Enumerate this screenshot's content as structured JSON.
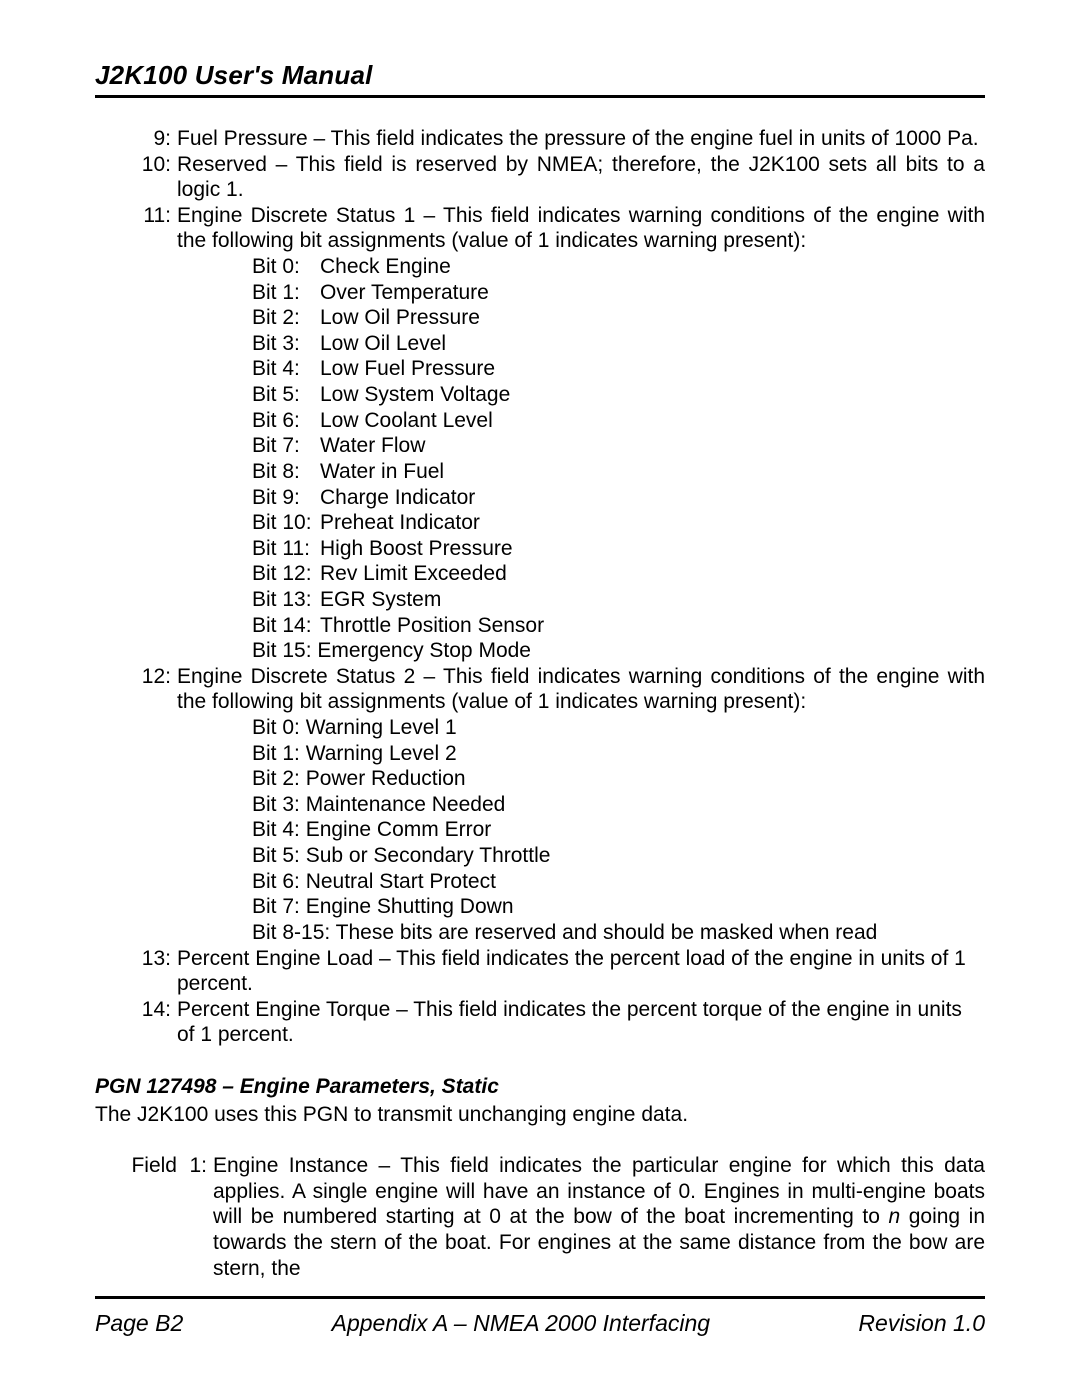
{
  "header": {
    "title": "J2K100 User's Manual"
  },
  "footer": {
    "page": "Page B2",
    "center": "Appendix A – NMEA 2000 Interfacing",
    "rev": "Revision 1.0"
  },
  "fields": {
    "f9": {
      "num": "9:",
      "text": "Fuel Pressure – This field indicates the pressure of the engine fuel in units of 1000 Pa."
    },
    "f10": {
      "num": "10:",
      "text": "Reserved – This field is reserved by NMEA; therefore, the J2K100 sets all bits to a logic 1."
    },
    "f11": {
      "num": "11:",
      "text": "Engine Discrete Status 1 – This field indicates warning conditions of the engine with the following bit assignments (value of 1 indicates warning present):"
    },
    "f12": {
      "num": "12:",
      "text": "Engine Discrete Status 2 – This field indicates warning conditions of the engine with the following bit assignments (value of 1 indicates warning present):"
    },
    "f13": {
      "num": "13:",
      "text": "Percent Engine Load – This field indicates the percent load of the engine in units of 1 percent."
    },
    "f14": {
      "num": "14:",
      "text": "Percent Engine Torque – This field indicates the percent torque of the engine in units of 1 percent."
    }
  },
  "bits1": [
    {
      "label": "Bit 0:",
      "text": "Check Engine"
    },
    {
      "label": "Bit 1:",
      "text": "Over Temperature"
    },
    {
      "label": "Bit 2:",
      "text": "Low Oil Pressure"
    },
    {
      "label": "Bit 3:",
      "text": "Low Oil Level"
    },
    {
      "label": "Bit 4:",
      "text": "Low Fuel Pressure"
    },
    {
      "label": "Bit 5:",
      "text": "Low System Voltage"
    },
    {
      "label": "Bit 6:",
      "text": "Low Coolant Level"
    },
    {
      "label": "Bit 7:",
      "text": "Water Flow"
    },
    {
      "label": "Bit 8:",
      "text": "Water in Fuel"
    },
    {
      "label": "Bit 9:",
      "text": "Charge Indicator"
    },
    {
      "label": "Bit 10:",
      "text": "Preheat Indicator"
    },
    {
      "label": "Bit 11:",
      "text": "High Boost Pressure"
    },
    {
      "label": "Bit 12:",
      "text": "Rev Limit Exceeded"
    },
    {
      "label": "Bit 13:",
      "text": "EGR System"
    },
    {
      "label": "Bit 14:",
      "text": "Throttle Position Sensor"
    },
    {
      "label": "Bit 15:",
      "text": "Emergency Stop Mode",
      "nosplit": true
    }
  ],
  "bits2": [
    {
      "label": "Bit 0:",
      "text": "Warning Level 1",
      "nosplit": true
    },
    {
      "label": "Bit 1:",
      "text": "Warning Level 2",
      "nosplit": true
    },
    {
      "label": "Bit 2:",
      "text": "Power Reduction",
      "nosplit": true
    },
    {
      "label": "Bit 3:",
      "text": "Maintenance Needed",
      "nosplit": true
    },
    {
      "label": "Bit 4:",
      "text": "Engine Comm Error",
      "nosplit": true
    },
    {
      "label": "Bit 5:",
      "text": "Sub or Secondary Throttle",
      "nosplit": true
    },
    {
      "label": "Bit 6:",
      "text": "Neutral Start Protect",
      "nosplit": true
    },
    {
      "label": "Bit 7:",
      "text": "Engine Shutting Down",
      "nosplit": true
    },
    {
      "label": "Bit 8-15:",
      "text": "These bits are reserved and should be masked when read",
      "nosplit": true
    }
  ],
  "section": {
    "heading": "PGN 127498 – Engine Parameters, Static",
    "intro": "The J2K100 uses this PGN to transmit unchanging engine data."
  },
  "field1": {
    "label": "Field",
    "num": "1:",
    "pre": "Engine Instance – This field indicates the particular engine for which this data applies. A single engine will have an instance of 0. Engines in multi-engine boats will be numbered starting at 0 at the bow of the boat incrementing to ",
    "ital": "n",
    "post": " going in towards the stern of the boat. For engines at the same distance from the bow are stern, the"
  }
}
